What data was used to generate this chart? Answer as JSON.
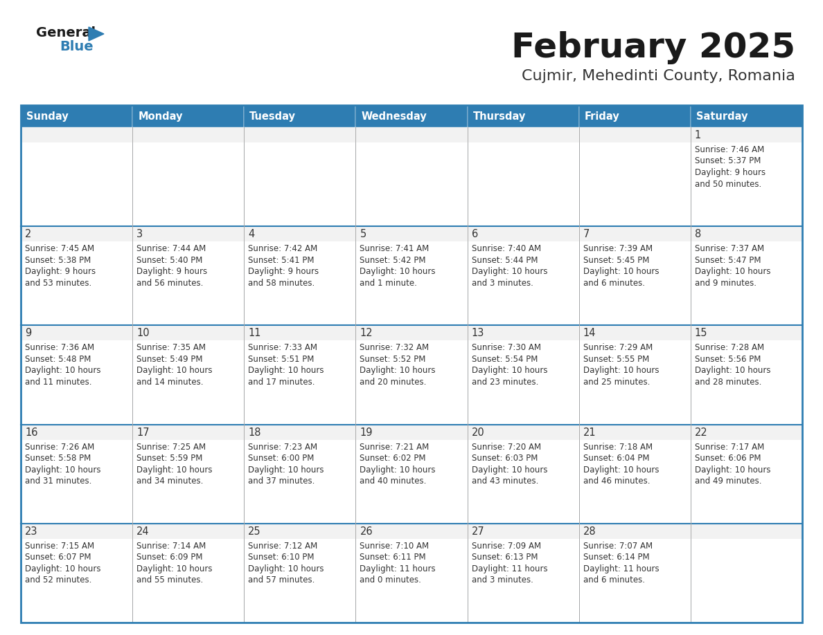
{
  "title": "February 2025",
  "subtitle": "Cujmir, Mehedinti County, Romania",
  "header_bg": "#2E7DB2",
  "header_text_color": "#FFFFFF",
  "cell_bg": "#FFFFFF",
  "cell_alt_bg": "#F2F2F2",
  "border_color": "#2E7DB2",
  "thin_border_color": "#AAAAAA",
  "day_headers": [
    "Sunday",
    "Monday",
    "Tuesday",
    "Wednesday",
    "Thursday",
    "Friday",
    "Saturday"
  ],
  "title_color": "#1a1a1a",
  "subtitle_color": "#333333",
  "day_number_color": "#333333",
  "cell_text_color": "#333333",
  "logo_general_color": "#1a1a1a",
  "logo_blue_color": "#2E7DB2",
  "days": [
    {
      "day": 1,
      "col": 6,
      "row": 0,
      "sunrise": "7:46 AM",
      "sunset": "5:37 PM",
      "daylight": "9 hours and 50 minutes."
    },
    {
      "day": 2,
      "col": 0,
      "row": 1,
      "sunrise": "7:45 AM",
      "sunset": "5:38 PM",
      "daylight": "9 hours and 53 minutes."
    },
    {
      "day": 3,
      "col": 1,
      "row": 1,
      "sunrise": "7:44 AM",
      "sunset": "5:40 PM",
      "daylight": "9 hours and 56 minutes."
    },
    {
      "day": 4,
      "col": 2,
      "row": 1,
      "sunrise": "7:42 AM",
      "sunset": "5:41 PM",
      "daylight": "9 hours and 58 minutes."
    },
    {
      "day": 5,
      "col": 3,
      "row": 1,
      "sunrise": "7:41 AM",
      "sunset": "5:42 PM",
      "daylight": "10 hours and 1 minute."
    },
    {
      "day": 6,
      "col": 4,
      "row": 1,
      "sunrise": "7:40 AM",
      "sunset": "5:44 PM",
      "daylight": "10 hours and 3 minutes."
    },
    {
      "day": 7,
      "col": 5,
      "row": 1,
      "sunrise": "7:39 AM",
      "sunset": "5:45 PM",
      "daylight": "10 hours and 6 minutes."
    },
    {
      "day": 8,
      "col": 6,
      "row": 1,
      "sunrise": "7:37 AM",
      "sunset": "5:47 PM",
      "daylight": "10 hours and 9 minutes."
    },
    {
      "day": 9,
      "col": 0,
      "row": 2,
      "sunrise": "7:36 AM",
      "sunset": "5:48 PM",
      "daylight": "10 hours and 11 minutes."
    },
    {
      "day": 10,
      "col": 1,
      "row": 2,
      "sunrise": "7:35 AM",
      "sunset": "5:49 PM",
      "daylight": "10 hours and 14 minutes."
    },
    {
      "day": 11,
      "col": 2,
      "row": 2,
      "sunrise": "7:33 AM",
      "sunset": "5:51 PM",
      "daylight": "10 hours and 17 minutes."
    },
    {
      "day": 12,
      "col": 3,
      "row": 2,
      "sunrise": "7:32 AM",
      "sunset": "5:52 PM",
      "daylight": "10 hours and 20 minutes."
    },
    {
      "day": 13,
      "col": 4,
      "row": 2,
      "sunrise": "7:30 AM",
      "sunset": "5:54 PM",
      "daylight": "10 hours and 23 minutes."
    },
    {
      "day": 14,
      "col": 5,
      "row": 2,
      "sunrise": "7:29 AM",
      "sunset": "5:55 PM",
      "daylight": "10 hours and 25 minutes."
    },
    {
      "day": 15,
      "col": 6,
      "row": 2,
      "sunrise": "7:28 AM",
      "sunset": "5:56 PM",
      "daylight": "10 hours and 28 minutes."
    },
    {
      "day": 16,
      "col": 0,
      "row": 3,
      "sunrise": "7:26 AM",
      "sunset": "5:58 PM",
      "daylight": "10 hours and 31 minutes."
    },
    {
      "day": 17,
      "col": 1,
      "row": 3,
      "sunrise": "7:25 AM",
      "sunset": "5:59 PM",
      "daylight": "10 hours and 34 minutes."
    },
    {
      "day": 18,
      "col": 2,
      "row": 3,
      "sunrise": "7:23 AM",
      "sunset": "6:00 PM",
      "daylight": "10 hours and 37 minutes."
    },
    {
      "day": 19,
      "col": 3,
      "row": 3,
      "sunrise": "7:21 AM",
      "sunset": "6:02 PM",
      "daylight": "10 hours and 40 minutes."
    },
    {
      "day": 20,
      "col": 4,
      "row": 3,
      "sunrise": "7:20 AM",
      "sunset": "6:03 PM",
      "daylight": "10 hours and 43 minutes."
    },
    {
      "day": 21,
      "col": 5,
      "row": 3,
      "sunrise": "7:18 AM",
      "sunset": "6:04 PM",
      "daylight": "10 hours and 46 minutes."
    },
    {
      "day": 22,
      "col": 6,
      "row": 3,
      "sunrise": "7:17 AM",
      "sunset": "6:06 PM",
      "daylight": "10 hours and 49 minutes."
    },
    {
      "day": 23,
      "col": 0,
      "row": 4,
      "sunrise": "7:15 AM",
      "sunset": "6:07 PM",
      "daylight": "10 hours and 52 minutes."
    },
    {
      "day": 24,
      "col": 1,
      "row": 4,
      "sunrise": "7:14 AM",
      "sunset": "6:09 PM",
      "daylight": "10 hours and 55 minutes."
    },
    {
      "day": 25,
      "col": 2,
      "row": 4,
      "sunrise": "7:12 AM",
      "sunset": "6:10 PM",
      "daylight": "10 hours and 57 minutes."
    },
    {
      "day": 26,
      "col": 3,
      "row": 4,
      "sunrise": "7:10 AM",
      "sunset": "6:11 PM",
      "daylight": "11 hours and 0 minutes."
    },
    {
      "day": 27,
      "col": 4,
      "row": 4,
      "sunrise": "7:09 AM",
      "sunset": "6:13 PM",
      "daylight": "11 hours and 3 minutes."
    },
    {
      "day": 28,
      "col": 5,
      "row": 4,
      "sunrise": "7:07 AM",
      "sunset": "6:14 PM",
      "daylight": "11 hours and 6 minutes."
    }
  ]
}
